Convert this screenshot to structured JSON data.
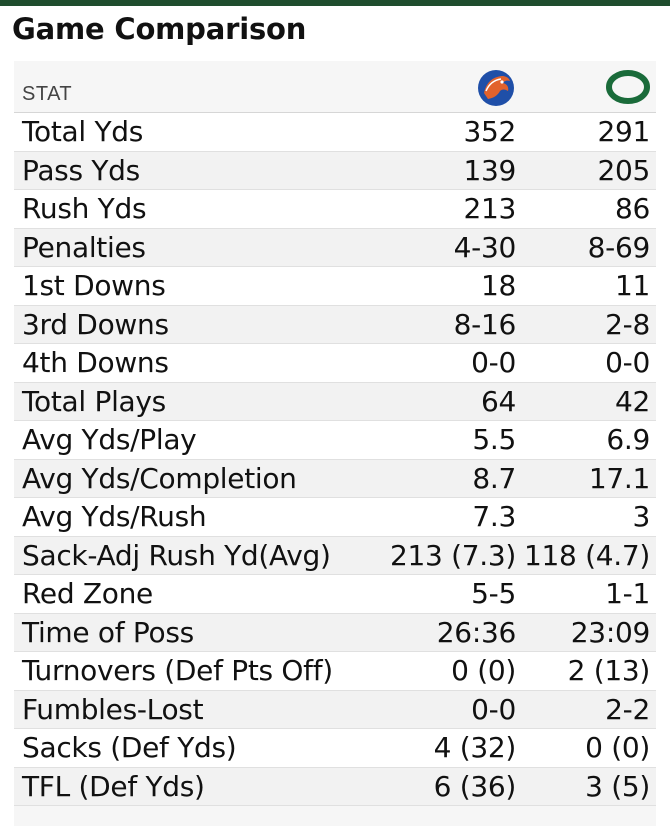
{
  "title": "Game Comparison",
  "header": {
    "stat_label": "STAT",
    "team_a_icon": "boise-state-bronco-logo",
    "team_b_icon": "oregon-o-logo"
  },
  "colors": {
    "top_bar": "#1f4d2e",
    "oregon_green": "#1a6b3a",
    "boise_blue": "#1f4fa8",
    "boise_orange": "#e2622c"
  },
  "stats": [
    {
      "label": "Total Yds",
      "team_a": "352",
      "team_b": "291"
    },
    {
      "label": "Pass Yds",
      "team_a": "139",
      "team_b": "205"
    },
    {
      "label": "Rush Yds",
      "team_a": "213",
      "team_b": "86"
    },
    {
      "label": "Penalties",
      "team_a": "4-30",
      "team_b": "8-69"
    },
    {
      "label": "1st Downs",
      "team_a": "18",
      "team_b": "11"
    },
    {
      "label": "3rd Downs",
      "team_a": "8-16",
      "team_b": "2-8"
    },
    {
      "label": "4th Downs",
      "team_a": "0-0",
      "team_b": "0-0"
    },
    {
      "label": "Total Plays",
      "team_a": "64",
      "team_b": "42"
    },
    {
      "label": "Avg Yds/Play",
      "team_a": "5.5",
      "team_b": "6.9"
    },
    {
      "label": "Avg Yds/Completion",
      "team_a": "8.7",
      "team_b": "17.1"
    },
    {
      "label": "Avg Yds/Rush",
      "team_a": "7.3",
      "team_b": "3"
    },
    {
      "label": "Sack-Adj Rush Yd(Avg)",
      "team_a": "213 (7.3)",
      "team_b": "118 (4.7)"
    },
    {
      "label": "Red Zone",
      "team_a": "5-5",
      "team_b": "1-1"
    },
    {
      "label": "Time of Poss",
      "team_a": "26:36",
      "team_b": "23:09"
    },
    {
      "label": "Turnovers (Def Pts Off)",
      "team_a": "0 (0)",
      "team_b": "2 (13)"
    },
    {
      "label": "Fumbles-Lost",
      "team_a": "0-0",
      "team_b": "2-2"
    },
    {
      "label": "Sacks (Def Yds)",
      "team_a": "4 (32)",
      "team_b": "0 (0)"
    },
    {
      "label": "TFL (Def Yds)",
      "team_a": "6 (36)",
      "team_b": "3 (5)"
    }
  ]
}
